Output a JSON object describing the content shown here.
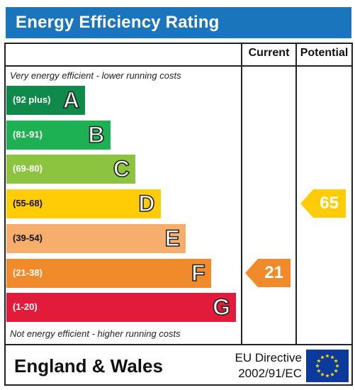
{
  "header": {
    "title": "Energy Efficiency Rating"
  },
  "columns": {
    "current": "Current",
    "potential": "Potential"
  },
  "notes": {
    "top": "Very energy efficient - lower running costs",
    "bottom": "Not energy efficient - higher running costs"
  },
  "bands": [
    {
      "letter": "A",
      "range": "(92 plus)",
      "color": "#0f8a4b"
    },
    {
      "letter": "B",
      "range": "(81-91)",
      "color": "#1db154"
    },
    {
      "letter": "C",
      "range": "(69-80)",
      "color": "#8cc43f"
    },
    {
      "letter": "D",
      "range": "(55-68)",
      "color": "#ffcc05"
    },
    {
      "letter": "E",
      "range": "(39-54)",
      "color": "#f7ad6b"
    },
    {
      "letter": "F",
      "range": "(21-38)",
      "color": "#f08a2b"
    },
    {
      "letter": "G",
      "range": "(1-20)",
      "color": "#e21b3a"
    }
  ],
  "ratings": {
    "current": {
      "value": "21",
      "band": "F",
      "color": "#f08a2b"
    },
    "potential": {
      "value": "65",
      "band": "D",
      "color": "#ffcc05"
    }
  },
  "footer": {
    "region": "England & Wales",
    "directive_line1": "EU Directive",
    "directive_line2": "2002/91/EC",
    "flag_icon": "eu-flag-icon"
  }
}
